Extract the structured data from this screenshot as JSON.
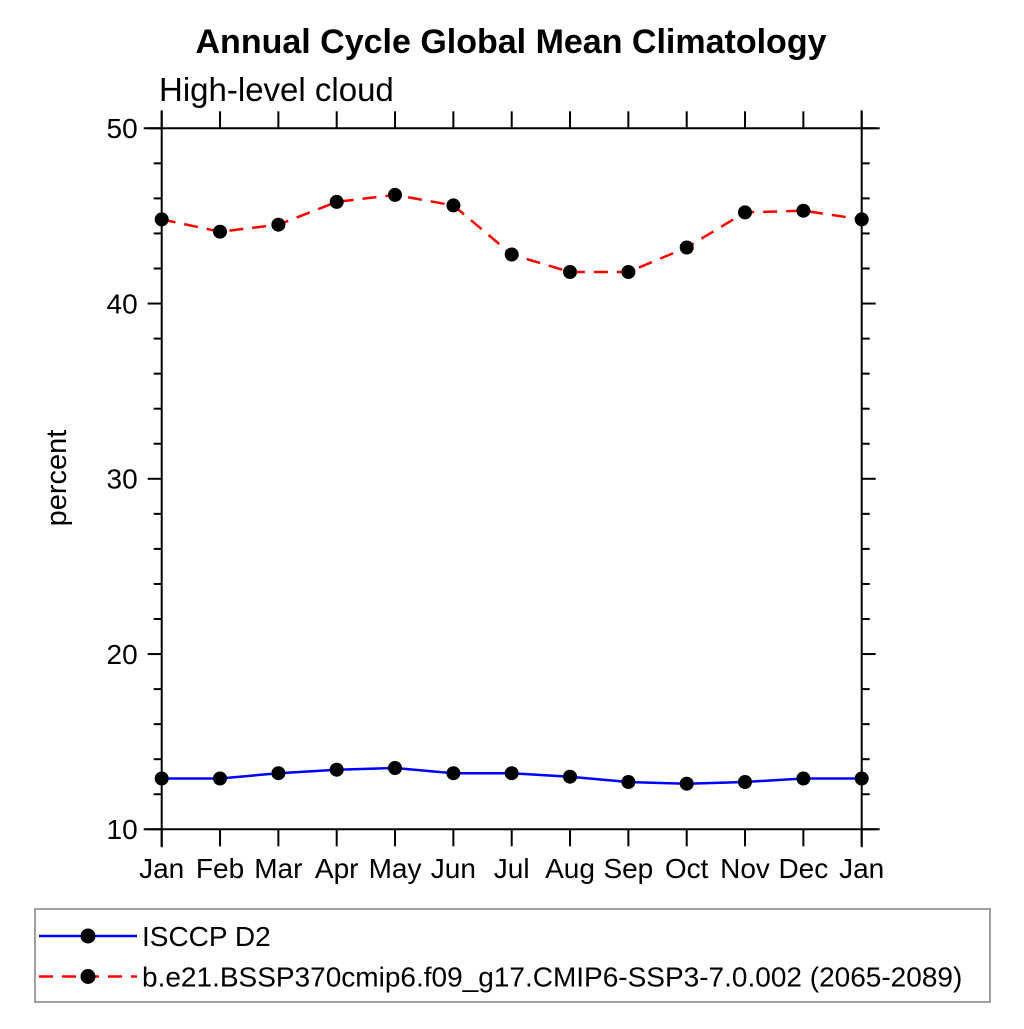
{
  "chart_data": {
    "type": "line",
    "title": "Annual Cycle Global Mean Climatology",
    "subtitle": "High-level cloud",
    "ylabel": "percent",
    "xlabel": "",
    "categories": [
      "Jan",
      "Feb",
      "Mar",
      "Apr",
      "May",
      "Jun",
      "Jul",
      "Aug",
      "Sep",
      "Oct",
      "Nov",
      "Dec",
      "Jan"
    ],
    "ylim": [
      10,
      50
    ],
    "y_major_ticks": [
      10,
      20,
      30,
      40,
      50
    ],
    "y_minor_step": 2,
    "grid": false,
    "legend_position": "bottom-left-box",
    "axis_color": "#000000",
    "legend_border_color": "#a0a0a0",
    "series": [
      {
        "name": "ISCCP D2",
        "color": "#0000ff",
        "style": "solid",
        "marker": "filled-circle",
        "marker_color": "#000000",
        "values": [
          12.9,
          12.9,
          13.2,
          13.4,
          13.5,
          13.2,
          13.2,
          13.0,
          12.7,
          12.6,
          12.7,
          12.9,
          12.9
        ]
      },
      {
        "name": "b.e21.BSSP370cmip6.f09_g17.CMIP6-SSP3-7.0.002 (2065-2089)",
        "color": "#ff0000",
        "style": "dashed",
        "marker": "filled-circle",
        "marker_color": "#000000",
        "values": [
          44.8,
          44.1,
          44.5,
          45.8,
          46.2,
          45.6,
          42.8,
          41.8,
          41.8,
          43.2,
          45.2,
          45.3,
          44.8
        ]
      }
    ]
  }
}
